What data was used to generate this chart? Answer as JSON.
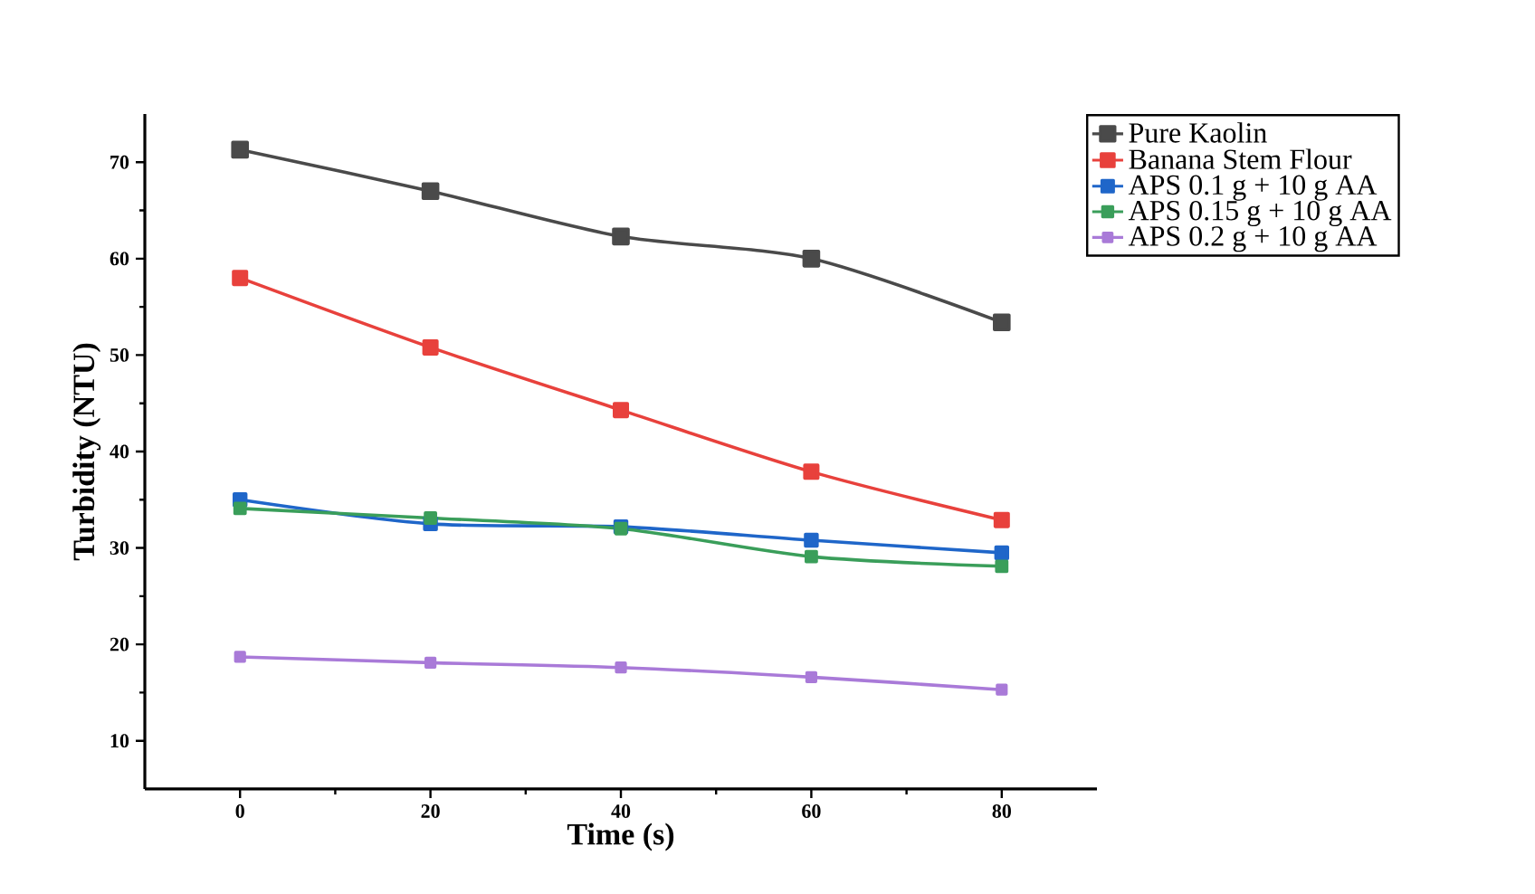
{
  "chart_data": {
    "type": "line",
    "xlabel": "Time (s)",
    "ylabel": "Turbidity (NTU)",
    "x": [
      0,
      20,
      40,
      60,
      80
    ],
    "xlim": [
      -10,
      90
    ],
    "xticks": [
      0,
      20,
      40,
      60,
      80
    ],
    "ylim": [
      5,
      75
    ],
    "yticks": [
      10,
      20,
      30,
      40,
      50,
      60,
      70
    ],
    "marker": "square",
    "legend": "top right",
    "series": [
      {
        "name": "Pure Kaolin",
        "color": "#4a4a4a",
        "values": [
          71.3,
          67.0,
          62.3,
          60.0,
          53.4
        ]
      },
      {
        "name": "Banana Stem Flour",
        "color": "#e8413c",
        "values": [
          58.0,
          50.8,
          44.3,
          37.9,
          32.9
        ]
      },
      {
        "name": "APS 0.1 g + 10 g AA",
        "color": "#1f66c9",
        "values": [
          35.0,
          32.5,
          32.2,
          30.8,
          29.5
        ]
      },
      {
        "name": "APS 0.15 g + 10 g AA",
        "color": "#3a9e5a",
        "values": [
          34.1,
          33.1,
          32.0,
          29.1,
          28.1
        ]
      },
      {
        "name": "APS 0.2 g + 10 g AA",
        "color": "#a97ad8",
        "values": [
          18.7,
          18.1,
          17.6,
          16.6,
          15.3
        ]
      }
    ]
  }
}
